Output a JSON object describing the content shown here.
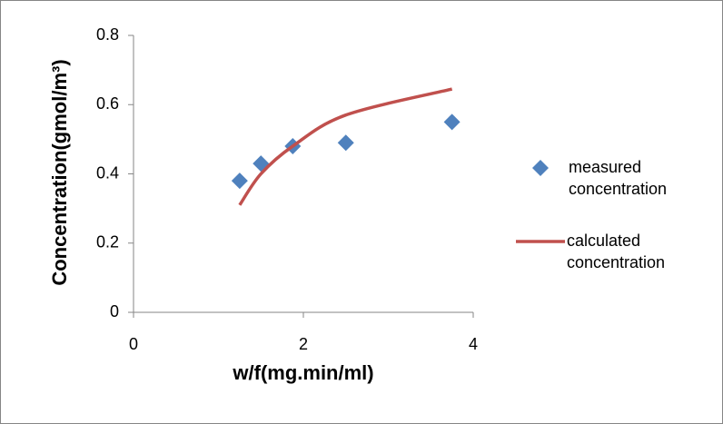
{
  "chart_data": {
    "type": "scatter",
    "x_label": "w/f(mg.min/ml)",
    "y_label": "Concentration(gmol/m³)",
    "xlim": [
      0,
      4
    ],
    "xticks": [
      0,
      2,
      4
    ],
    "ylim": [
      0,
      0.8
    ],
    "yticks": [
      0,
      0.2,
      0.4,
      0.6,
      0.8
    ],
    "legend": "right",
    "series": [
      {
        "name": "measured concentration",
        "color": "#4f81bd",
        "mode": "markers",
        "x": [
          1.25,
          1.5,
          1.875,
          2.5,
          3.75
        ],
        "values": [
          0.38,
          0.43,
          0.48,
          0.49,
          0.55
        ]
      },
      {
        "name": "calculated concentration",
        "color": "#c0504d",
        "mode": "line",
        "x": [
          1.25,
          1.5,
          1.875,
          2.5,
          3.75
        ],
        "values": [
          0.31,
          0.4,
          0.48,
          0.57,
          0.645
        ]
      }
    ]
  }
}
